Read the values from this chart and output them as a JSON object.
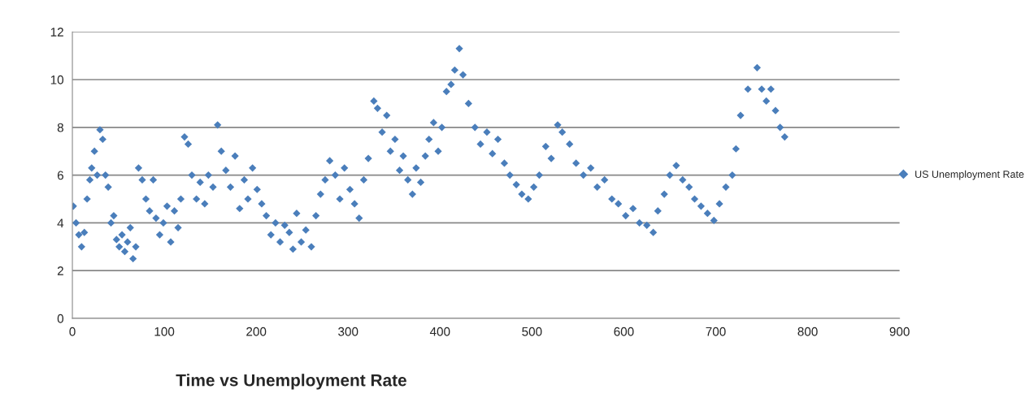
{
  "chart_data": {
    "type": "scatter",
    "title": "Time vs Unemployment Rate",
    "legend": "right",
    "grid": "y",
    "marker": "diamond",
    "xlim": [
      0,
      900
    ],
    "xticks": [
      0,
      100,
      200,
      300,
      400,
      500,
      600,
      700,
      800,
      900
    ],
    "ylim": [
      0,
      12
    ],
    "yticks": [
      0,
      2,
      4,
      6,
      8,
      10,
      12
    ],
    "series": [
      {
        "name": "US Unemployment Rate",
        "color": "#4a7ebb",
        "x": [
          1,
          4,
          7,
          10,
          13,
          16,
          19,
          21,
          24,
          27,
          30,
          33,
          36,
          39,
          42,
          45,
          48,
          51,
          54,
          57,
          60,
          63,
          66,
          69,
          72,
          76,
          80,
          84,
          88,
          91,
          95,
          99,
          103,
          107,
          111,
          115,
          118,
          122,
          126,
          130,
          135,
          139,
          144,
          148,
          153,
          158,
          162,
          167,
          172,
          177,
          182,
          187,
          191,
          196,
          201,
          206,
          211,
          216,
          221,
          226,
          231,
          236,
          240,
          244,
          249,
          254,
          260,
          265,
          270,
          275,
          280,
          286,
          291,
          296,
          302,
          307,
          312,
          317,
          322,
          328,
          332,
          337,
          342,
          346,
          351,
          356,
          360,
          365,
          370,
          374,
          379,
          384,
          388,
          393,
          398,
          402,
          407,
          412,
          416,
          421,
          425,
          431,
          438,
          444,
          451,
          457,
          463,
          470,
          476,
          483,
          489,
          496,
          502,
          508,
          515,
          521,
          528,
          533,
          541,
          548,
          556,
          564,
          571,
          579,
          587,
          594,
          602,
          610,
          617,
          625,
          632,
          637,
          644,
          650,
          657,
          664,
          671,
          677,
          684,
          691,
          698,
          704,
          711,
          718,
          722,
          727,
          735,
          745,
          750,
          755,
          760,
          765,
          770,
          775
        ],
        "values": [
          4.7,
          4.0,
          3.5,
          3.0,
          3.6,
          5.0,
          5.8,
          6.3,
          7.0,
          6.0,
          7.9,
          7.5,
          6.0,
          5.5,
          4.0,
          4.3,
          3.3,
          3.0,
          3.5,
          2.8,
          3.2,
          3.8,
          2.5,
          3.0,
          6.3,
          5.8,
          5.0,
          4.5,
          5.8,
          4.2,
          3.5,
          4.0,
          4.7,
          3.2,
          4.5,
          3.8,
          5.0,
          7.6,
          7.3,
          6.0,
          5.0,
          5.7,
          4.8,
          6.0,
          5.5,
          8.1,
          7.0,
          6.2,
          5.5,
          6.8,
          4.6,
          5.8,
          5.0,
          6.3,
          5.4,
          4.8,
          4.3,
          3.5,
          4.0,
          3.2,
          3.9,
          3.6,
          2.9,
          4.4,
          3.2,
          3.7,
          3.0,
          4.3,
          5.2,
          5.8,
          6.6,
          6.0,
          5.0,
          6.3,
          5.4,
          4.8,
          4.2,
          5.8,
          6.7,
          9.1,
          8.8,
          7.8,
          8.5,
          7.0,
          7.5,
          6.2,
          6.8,
          5.8,
          5.2,
          6.3,
          5.7,
          6.8,
          7.5,
          8.2,
          7.0,
          8.0,
          9.5,
          9.8,
          10.4,
          11.3,
          10.2,
          9.0,
          8.0,
          7.3,
          7.8,
          6.9,
          7.5,
          6.5,
          6.0,
          5.6,
          5.2,
          5.0,
          5.5,
          6.0,
          7.2,
          6.7,
          8.1,
          7.8,
          7.3,
          6.5,
          6.0,
          6.3,
          5.5,
          5.8,
          5.0,
          4.8,
          4.3,
          4.6,
          4.0,
          3.9,
          3.6,
          4.5,
          5.2,
          6.0,
          6.4,
          5.8,
          5.5,
          5.0,
          4.7,
          4.4,
          4.1,
          4.8,
          5.5,
          6.0,
          7.1,
          8.5,
          9.6,
          10.5,
          9.6,
          9.1,
          9.6,
          8.7,
          8.0,
          7.6
        ]
      }
    ]
  }
}
